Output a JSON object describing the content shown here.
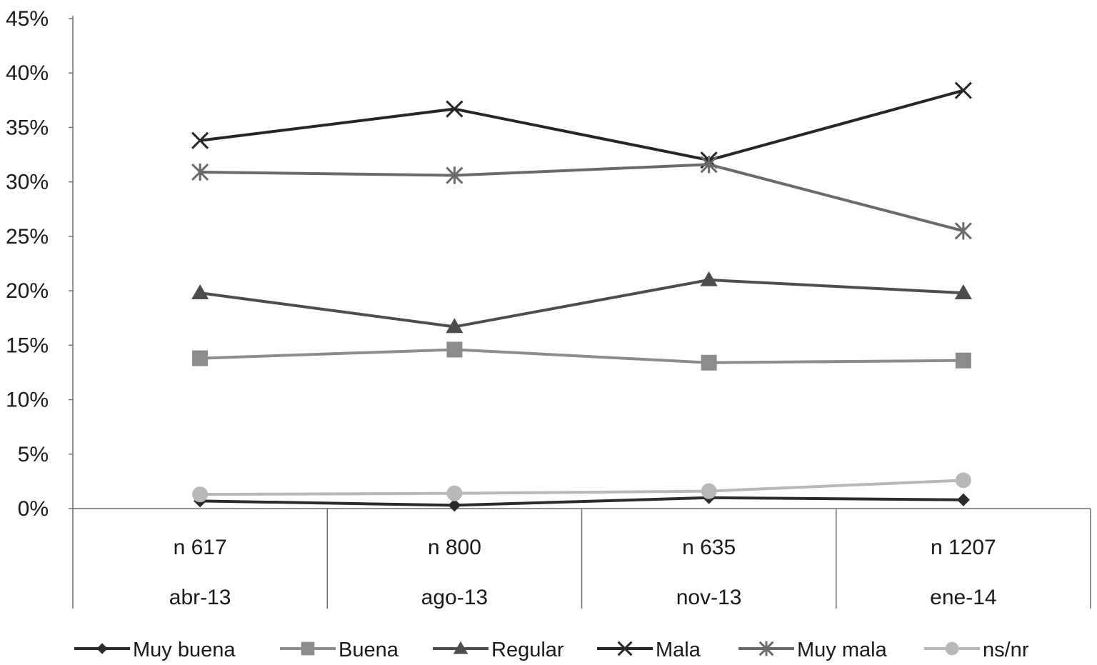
{
  "chart_data": {
    "type": "line",
    "categories": [
      {
        "n": "n 617",
        "date": "abr-13"
      },
      {
        "n": "n 800",
        "date": "ago-13"
      },
      {
        "n": "n 635",
        "date": "nov-13"
      },
      {
        "n": "n 1207",
        "date": "ene-14"
      }
    ],
    "y_ticks": [
      "0%",
      "5%",
      "10%",
      "15%",
      "20%",
      "25%",
      "30%",
      "35%",
      "40%",
      "45%"
    ],
    "ylim": [
      0,
      45
    ],
    "grid": false,
    "legend_position": "bottom",
    "series": [
      {
        "name": "Muy buena",
        "marker": "diamond",
        "color": "#2b2b2b",
        "values": [
          0.7,
          0.3,
          1.0,
          0.8
        ]
      },
      {
        "name": "Buena",
        "marker": "square",
        "color": "#8c8c8c",
        "values": [
          13.8,
          14.6,
          13.4,
          13.6
        ]
      },
      {
        "name": "Regular",
        "marker": "triangle",
        "color": "#4d4d4d",
        "values": [
          19.8,
          16.7,
          21.0,
          19.8
        ]
      },
      {
        "name": "Mala",
        "marker": "x",
        "color": "#262626",
        "values": [
          33.8,
          36.7,
          32.0,
          38.4
        ]
      },
      {
        "name": "Muy mala",
        "marker": "star",
        "color": "#6a6a6a",
        "values": [
          30.9,
          30.6,
          31.6,
          25.5
        ]
      },
      {
        "name": "ns/nr",
        "marker": "circle",
        "color": "#b8b8b8",
        "values": [
          1.3,
          1.4,
          1.6,
          2.6
        ]
      }
    ]
  }
}
